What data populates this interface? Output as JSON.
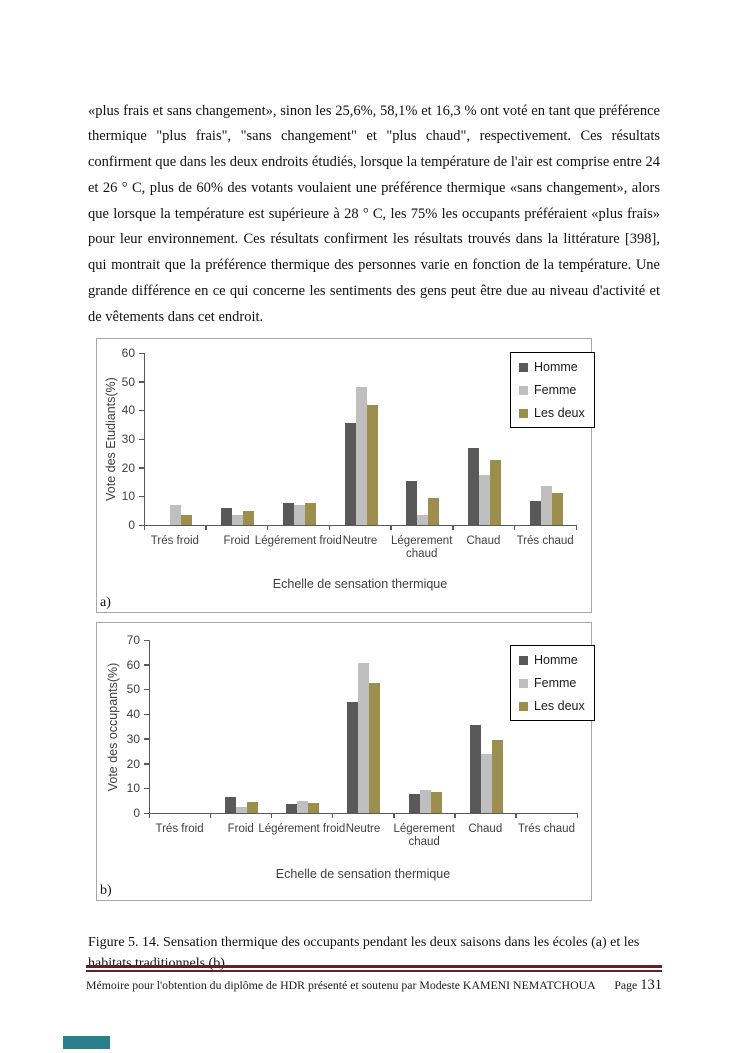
{
  "page": {
    "paragraph": "«plus frais et sans changement», sinon les 25,6%, 58,1% et 16,3 % ont voté en tant que préférence thermique \"plus frais\", \"sans changement\" et \"plus chaud\", respectivement. Ces résultats confirment que dans les deux endroits étudiés, lorsque la température de l'air est comprise entre 24 et 26 ° C, plus de 60% des votants voulaient une préférence thermique «sans changement», alors que lorsque la température est supérieure à 28 ° C, les 75% les occupants préféraient «plus frais» pour leur environnement. Ces résultats confirment les résultats trouvés dans la littérature [398], qui montrait que la préférence thermique des personnes varie en fonction de la température. Une grande différence en ce qui concerne les sentiments des gens peut être due au niveau d'activité et de vêtements dans cet endroit.",
    "caption": "Figure 5. 14. Sensation thermique des occupants pendant les deux saisons dans les écoles (a) et les habitats traditionnels (b).",
    "footer": {
      "left": "Mémoire pour l'obtention du diplôme de HDR présenté et soutenu par Modeste KAMENI NEMATCHOUA",
      "page_label": "Page",
      "page_number": "131"
    },
    "colors": {
      "rule": "#622423",
      "teal_box": "#2b7f8c"
    }
  },
  "chart_data": [
    {
      "type": "bar",
      "panel_label": "a)",
      "categories": [
        "Trés froid",
        "Froid",
        "Légérement froid",
        "Neutre",
        "Légerement\nchaud",
        "Chaud",
        "Trés chaud"
      ],
      "series": [
        {
          "name": "Homme",
          "color": "#595959",
          "values": [
            0,
            6,
            7.5,
            35.5,
            15.5,
            27,
            8.5
          ]
        },
        {
          "name": "Femme",
          "color": "#bfbfbf",
          "values": [
            7,
            3.5,
            7,
            48,
            3.5,
            17.5,
            13.5
          ]
        },
        {
          "name": "Les deux",
          "color": "#9c8e4d",
          "values": [
            3.5,
            5,
            7.5,
            42,
            9.5,
            22.5,
            11
          ]
        }
      ],
      "xlabel": "Echelle de sensation thermique",
      "ylabel": "Vote des Etudiants(%)",
      "ylim": [
        0,
        60
      ],
      "ytick_step": 10,
      "grid": false,
      "legend_position": "top-right"
    },
    {
      "type": "bar",
      "panel_label": "b)",
      "categories": [
        "Trés froid",
        "Froid",
        "Légérement froid",
        "Neutre",
        "Légerement\nchaud",
        "Chaud",
        "Trés chaud"
      ],
      "series": [
        {
          "name": "Homme",
          "color": "#595959",
          "values": [
            0,
            6.5,
            3.5,
            45,
            7.5,
            35.5,
            0
          ]
        },
        {
          "name": "Femme",
          "color": "#bfbfbf",
          "values": [
            0,
            2.5,
            5,
            60.5,
            9.5,
            24,
            0
          ]
        },
        {
          "name": "Les deux",
          "color": "#9c8e4d",
          "values": [
            0,
            4.5,
            4,
            52.5,
            8.5,
            29.5,
            0
          ]
        }
      ],
      "xlabel": "Echelle de sensation thermique",
      "ylabel": "Vote des occupants(%)",
      "ylim": [
        0,
        70
      ],
      "ytick_step": 10,
      "grid": false,
      "legend_position": "top-right"
    }
  ]
}
